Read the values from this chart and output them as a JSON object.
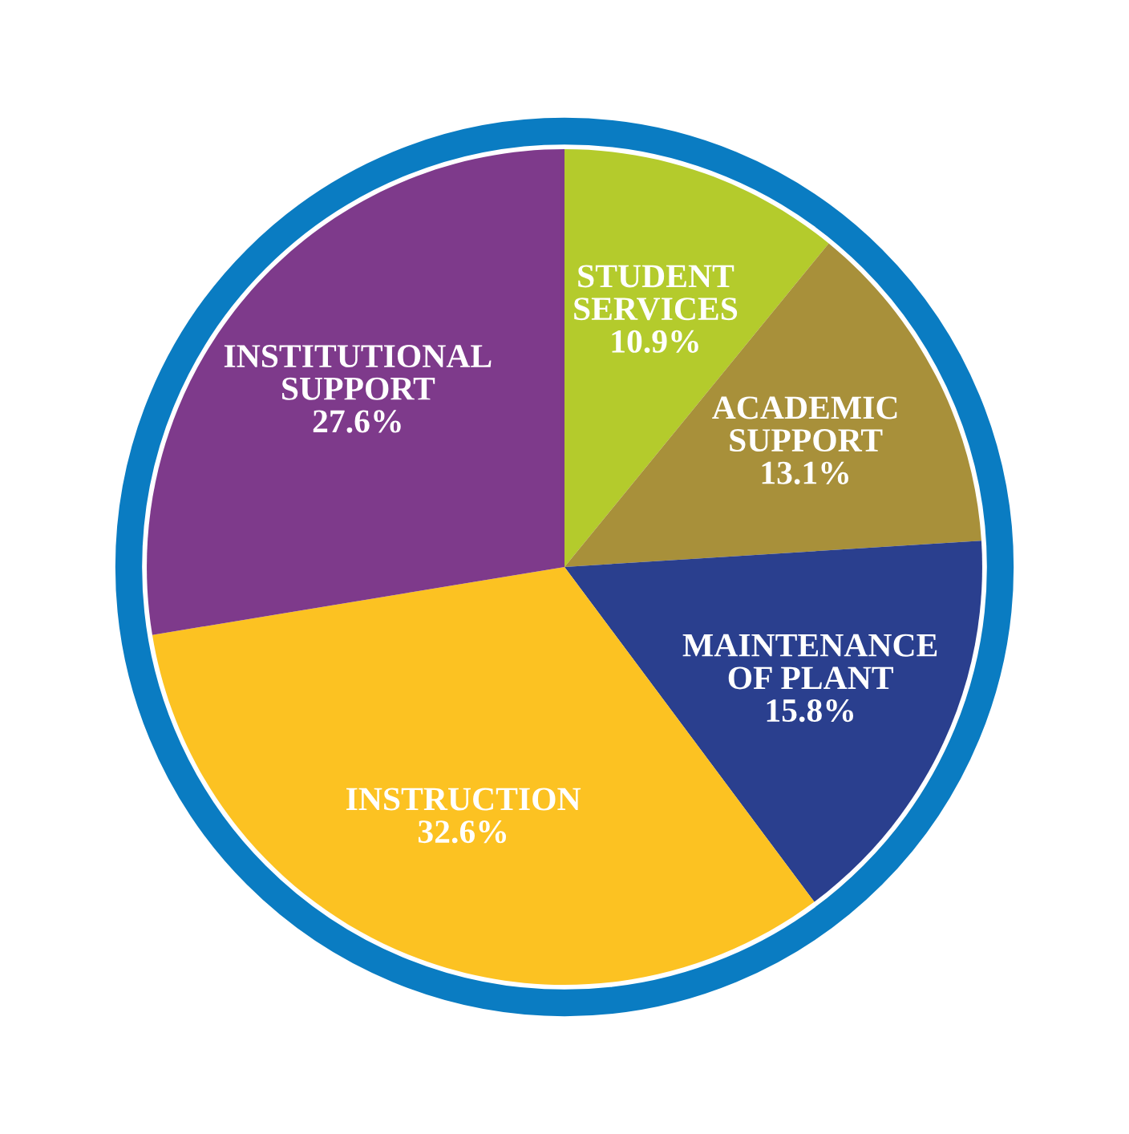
{
  "chart_data": {
    "type": "pie",
    "categories": [
      "STUDENT\nSERVICES",
      "ACADEMIC\nSUPPORT",
      "MAINTENANCE\nOF PLANT",
      "INSTRUCTION",
      "INSTITUTIONAL\nSUPPORT"
    ],
    "values": [
      10.9,
      13.1,
      15.8,
      32.6,
      27.6
    ],
    "value_labels": [
      "10.9%",
      "13.1%",
      "15.8%",
      "32.6%",
      "27.6%"
    ],
    "colors": [
      "#b4cb2c",
      "#a8903a",
      "#2a3f8e",
      "#fcc222",
      "#7e3a8b"
    ],
    "legend": false
  }
}
